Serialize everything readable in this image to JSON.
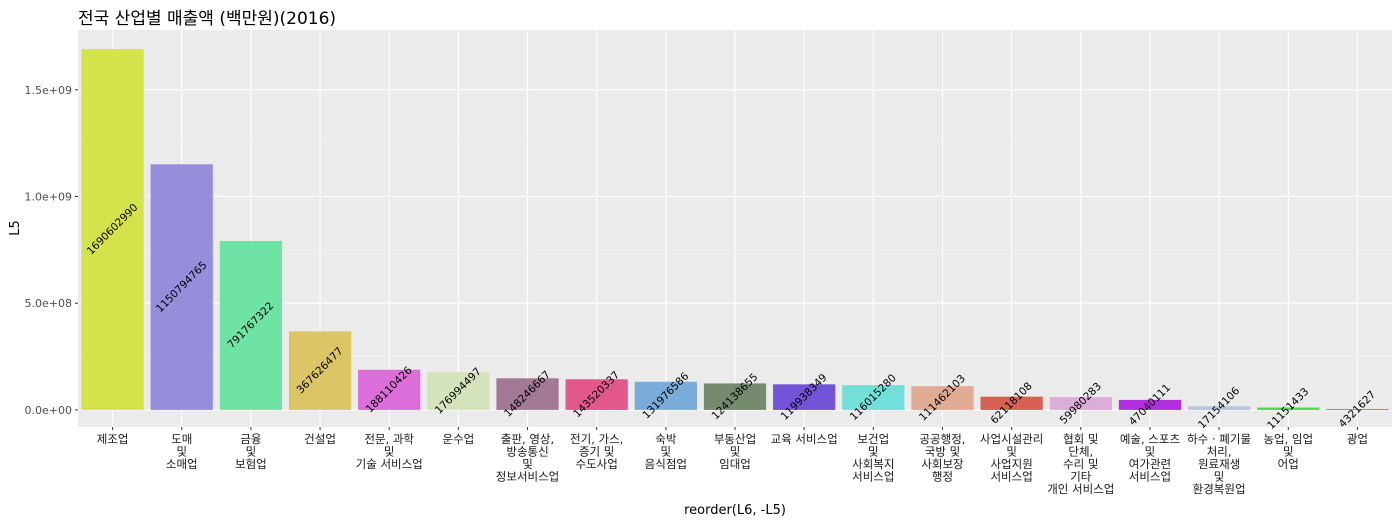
{
  "chart_data": {
    "type": "bar",
    "title": "전국 산업별 매출액 (백만원)(2016)",
    "xlabel": "reorder(L6, -L5)",
    "ylabel": "L5",
    "ylim": [
      -80000000,
      1780000000
    ],
    "y_ticks": [
      {
        "value": 0,
        "label": "0.0e+00"
      },
      {
        "value": 500000000,
        "label": "5.0e+08"
      },
      {
        "value": 1000000000,
        "label": "1.0e+09"
      },
      {
        "value": 1500000000,
        "label": "1.5e+09"
      }
    ],
    "grid": true,
    "legend": "none",
    "bars": [
      {
        "category": "제조업",
        "value": 1690602990,
        "label": "1690602990",
        "color": "#d4e34c"
      },
      {
        "category": "도매\n및\n소매업",
        "value": 1150794765,
        "label": "1150794765",
        "color": "#968ddb"
      },
      {
        "category": "금융\n및\n보험업",
        "value": 791767322,
        "label": "791767322",
        "color": "#6fe3a4"
      },
      {
        "category": "건설업",
        "value": 367626477,
        "label": "367626477",
        "color": "#dcc565"
      },
      {
        "category": "전문, 과학\n및\n기술 서비스업",
        "value": 188110426,
        "label": "188110426",
        "color": "#db6ed9"
      },
      {
        "category": "운수업",
        "value": 176994497,
        "label": "176994497",
        "color": "#d5e3bd"
      },
      {
        "category": "출판, 영상,\n방송통신\n및\n정보서비스업",
        "value": 148246667,
        "label": "148246667",
        "color": "#a37a95"
      },
      {
        "category": "전기, 가스,\n증기 및\n수도사업",
        "value": 143520337,
        "label": "143520337",
        "color": "#e0588c"
      },
      {
        "category": "숙박\n및\n음식점업",
        "value": 131976586,
        "label": "131976586",
        "color": "#79acd9"
      },
      {
        "category": "부동산업\n및\n임대업",
        "value": 124138655,
        "label": "124138655",
        "color": "#768a6e"
      },
      {
        "category": "교육 서비스업",
        "value": 119938349,
        "label": "119938349",
        "color": "#7454d6"
      },
      {
        "category": "보건업\n및\n사회복지\n서비스업",
        "value": 116015280,
        "label": "116015280",
        "color": "#72dfd9"
      },
      {
        "category": "공공행정,\n국방 및\n사회보장\n행정",
        "value": 111462103,
        "label": "111462103",
        "color": "#dfab93"
      },
      {
        "category": "사업시설관리\n및\n사업지원\n서비스업",
        "value": 62118108,
        "label": "62118108",
        "color": "#d75f53"
      },
      {
        "category": "협회 및\n단체,\n수리 및\n기타\n개인 서비스업",
        "value": 59980283,
        "label": "59980283",
        "color": "#ddadd9"
      },
      {
        "category": "예술, 스포츠\n및\n여가관련\n서비스업",
        "value": 47040111,
        "label": "47040111",
        "color": "#b12fde"
      },
      {
        "category": "하수 · 폐기물\n처리,\n원료재생\n및\n환경복원업",
        "value": 17154106,
        "label": "17154106",
        "color": "#b8c7e0"
      },
      {
        "category": "농업, 임업\n및\n어업",
        "value": 11151433,
        "label": "11151433",
        "color": "#4fd84e"
      },
      {
        "category": "광업",
        "value": 4321627,
        "label": "4321627",
        "color": "#e07f2e"
      }
    ]
  }
}
